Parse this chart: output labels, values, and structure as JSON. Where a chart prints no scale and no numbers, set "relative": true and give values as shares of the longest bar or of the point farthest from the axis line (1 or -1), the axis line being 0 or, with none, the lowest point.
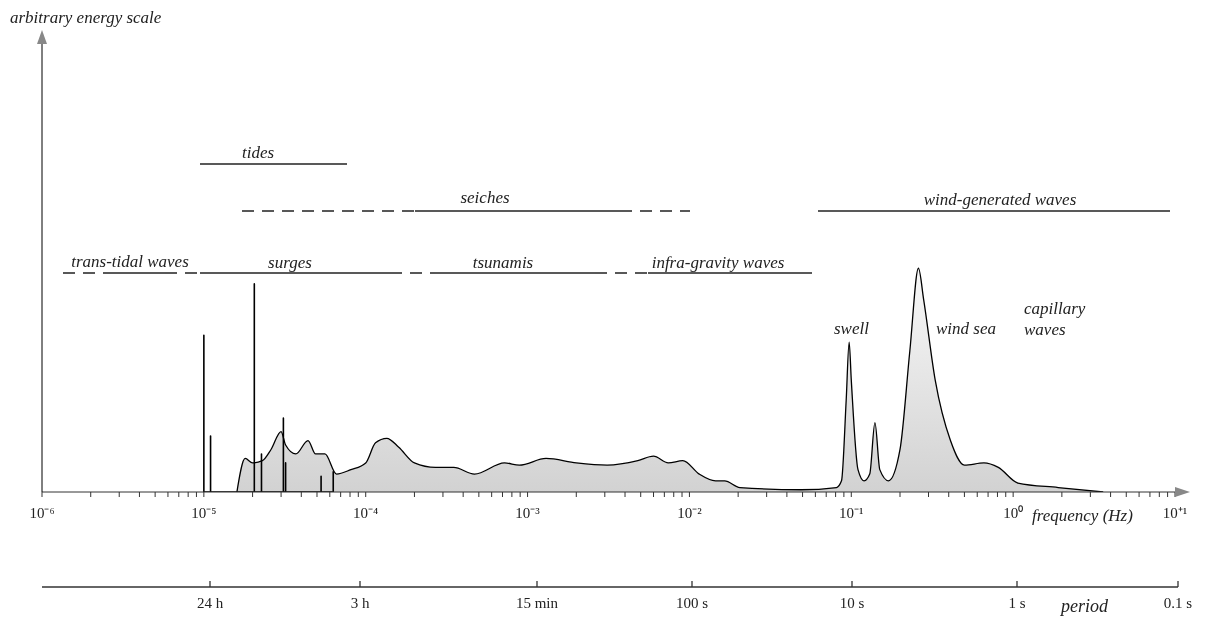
{
  "chart_data": {
    "type": "area",
    "relative": true,
    "log": "x",
    "xlabel": "frequency (Hz)",
    "xlim": [
      1e-06,
      10
    ],
    "xticks": [
      {
        "value": 1e-06,
        "label": "10⁻⁶"
      },
      {
        "value": 2e-06,
        "label": null
      },
      {
        "value": 3e-06,
        "label": null
      },
      {
        "value": 4e-06,
        "label": null
      },
      {
        "value": 5e-06,
        "label": null
      },
      {
        "value": 6e-06,
        "label": null
      },
      {
        "value": 7e-06,
        "label": null
      },
      {
        "value": 8e-06,
        "label": null
      },
      {
        "value": 9e-06,
        "label": null
      },
      {
        "value": 1e-05,
        "label": "10⁻⁵"
      },
      {
        "value": 2e-05,
        "label": null
      },
      {
        "value": 3e-05,
        "label": null
      },
      {
        "value": 4e-05,
        "label": null
      },
      {
        "value": 5e-05,
        "label": null
      },
      {
        "value": 6e-05,
        "label": null
      },
      {
        "value": 7e-05,
        "label": null
      },
      {
        "value": 8e-05,
        "label": null
      },
      {
        "value": 9e-05,
        "label": null
      },
      {
        "value": 0.0001,
        "label": "10⁻⁴"
      },
      {
        "value": 0.0002,
        "label": null
      },
      {
        "value": 0.0003,
        "label": null
      },
      {
        "value": 0.0004,
        "label": null
      },
      {
        "value": 0.0005,
        "label": null
      },
      {
        "value": 0.0006,
        "label": null
      },
      {
        "value": 0.0007,
        "label": null
      },
      {
        "value": 0.0008,
        "label": null
      },
      {
        "value": 0.0009,
        "label": null
      },
      {
        "value": 0.001,
        "label": "10⁻³"
      },
      {
        "value": 0.002,
        "label": null
      },
      {
        "value": 0.003,
        "label": null
      },
      {
        "value": 0.004,
        "label": null
      },
      {
        "value": 0.005,
        "label": null
      },
      {
        "value": 0.006,
        "label": null
      },
      {
        "value": 0.007,
        "label": null
      },
      {
        "value": 0.008,
        "label": null
      },
      {
        "value": 0.009,
        "label": null
      },
      {
        "value": 0.01,
        "label": "10⁻²"
      },
      {
        "value": 0.02,
        "label": null
      },
      {
        "value": 0.03,
        "label": null
      },
      {
        "value": 0.04,
        "label": null
      },
      {
        "value": 0.05,
        "label": null
      },
      {
        "value": 0.06,
        "label": null
      },
      {
        "value": 0.07,
        "label": null
      },
      {
        "value": 0.08,
        "label": null
      },
      {
        "value": 0.09,
        "label": null
      },
      {
        "value": 0.1,
        "label": "10⁻¹"
      },
      {
        "value": 0.2,
        "label": null
      },
      {
        "value": 0.3,
        "label": null
      },
      {
        "value": 0.4,
        "label": null
      },
      {
        "value": 0.5,
        "label": null
      },
      {
        "value": 0.6,
        "label": null
      },
      {
        "value": 0.7,
        "label": null
      },
      {
        "value": 0.8,
        "label": null
      },
      {
        "value": 0.9,
        "label": null
      },
      {
        "value": 1,
        "label": "10⁰"
      },
      {
        "value": 2,
        "label": null
      },
      {
        "value": 3,
        "label": null
      },
      {
        "value": 4,
        "label": null
      },
      {
        "value": 5,
        "label": null
      },
      {
        "value": 6,
        "label": null
      },
      {
        "value": 7,
        "label": null
      },
      {
        "value": 8,
        "label": null
      },
      {
        "value": 9,
        "label": null
      },
      {
        "value": 10,
        "label": "10⁺¹"
      }
    ],
    "series": [
      {
        "type": "area",
        "color": "#b4b4b4",
        "x": [
          1.6e-05,
          1.8e-05,
          2e-05,
          2.3e-05,
          2.6e-05,
          3e-05,
          3.2e-05,
          3.7e-05,
          4.4e-05,
          4.9e-05,
          5.6e-05,
          6.6e-05,
          8.1e-05,
          0.0001,
          0.000115,
          0.000135,
          0.00016,
          0.0002,
          0.00027,
          0.00035,
          0.00047,
          0.00072,
          0.00089,
          0.0013,
          0.002,
          0.0031,
          0.0048,
          0.006,
          0.0074,
          0.0091,
          0.0115,
          0.0145,
          0.0165,
          0.0205,
          0.049,
          0.081,
          0.087,
          0.093,
          0.097,
          0.1,
          0.11,
          0.12,
          0.13,
          0.14,
          0.15,
          0.17,
          0.2,
          0.23,
          0.26,
          0.28,
          0.33,
          0.41,
          0.5,
          0.66,
          0.81,
          1.07,
          1.9,
          3.6
        ],
        "values": [
          0,
          0.15,
          0.13,
          0.14,
          0.19,
          0.27,
          0.21,
          0.17,
          0.23,
          0.17,
          0.17,
          0.08,
          0.1,
          0.13,
          0.22,
          0.24,
          0.2,
          0.13,
          0.11,
          0.11,
          0.08,
          0.13,
          0.12,
          0.15,
          0.13,
          0.12,
          0.14,
          0.16,
          0.13,
          0.14,
          0.08,
          0.05,
          0.05,
          0.02,
          0.01,
          0.02,
          0.05,
          0.41,
          0.67,
          0.5,
          0.1,
          0.05,
          0.08,
          0.31,
          0.1,
          0.05,
          0.19,
          0.63,
          1,
          0.86,
          0.5,
          0.23,
          0.12,
          0.13,
          0.11,
          0.04,
          0.02,
          0
        ]
      },
      {
        "type": "line",
        "color": "#000000",
        "x": [
          1e-05,
          1e-05,
          1e-05,
          1.1e-05,
          1.1e-05,
          1.1e-05,
          2.05e-05,
          2.05e-05,
          2.05e-05,
          2.27e-05,
          2.27e-05,
          2.27e-05,
          3.1e-05,
          3.1e-05,
          3.1e-05,
          3.2e-05,
          3.2e-05,
          3.2e-05,
          5.3e-05,
          5.3e-05,
          5.3e-05,
          6.3e-05,
          6.3e-05,
          6.3e-05
        ],
        "values": [
          0,
          0.7,
          0,
          0,
          0.25,
          0,
          0,
          0.93,
          0,
          0,
          0.17,
          0,
          0,
          0.33,
          0,
          0,
          0.13,
          0,
          0,
          0.07,
          0,
          0,
          0.09,
          0
        ]
      }
    ],
    "annotations": [
      "swell",
      "wind sea",
      "capillary waves",
      "tides",
      "seiches",
      "wind-generated waves",
      "trans-tidal waves",
      "surges",
      "tsunamis",
      "infra-gravity waves",
      "24 h",
      "3 h",
      "15 min",
      "100 s",
      "10 s",
      "1 s",
      "0.1 s",
      "period",
      "arbitrary energy scale"
    ]
  }
}
